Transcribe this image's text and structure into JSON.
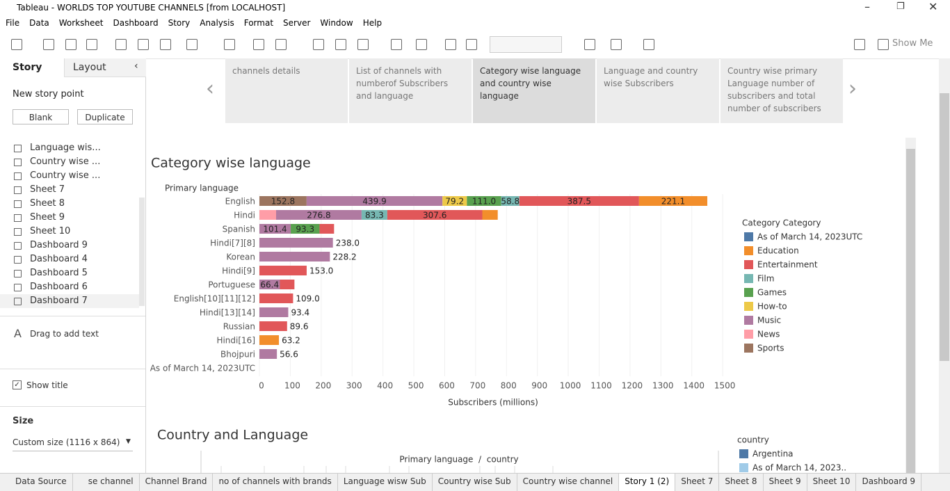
{
  "window": {
    "title": "Tableau - WORLDS TOP YOUTUBE CHANNELS [from LOCALHOST]"
  },
  "menu": [
    "File",
    "Data",
    "Worksheet",
    "Dashboard",
    "Story",
    "Analysis",
    "Format",
    "Server",
    "Window",
    "Help"
  ],
  "toolbar": {
    "show_me": "Show Me"
  },
  "side_panel": {
    "tabs": [
      "Story",
      "Layout"
    ],
    "new_story_point": "New story point",
    "buttons": [
      "Blank",
      "Duplicate"
    ],
    "sheets": [
      "Language wis...",
      "Country wise ...",
      "Country wise ...",
      "Sheet 7",
      "Sheet 8",
      "Sheet 9",
      "Sheet 10",
      "Dashboard 9",
      "Dashboard 4",
      "Dashboard 5",
      "Dashboard 6",
      "Dashboard 7"
    ],
    "drag_text": "Drag to add text",
    "show_title": "Show title",
    "size_label": "Size",
    "size_value": "Custom size (1116 x 864)"
  },
  "story_points": [
    "channels details",
    "List of channels with numberof Subscribers and language",
    "Category wise language and country wise language",
    "Language and country wise Subscribers",
    "Country wise primary Language number of subscribers and total number of subscribers"
  ],
  "chart_data": {
    "type": "bar",
    "orientation": "horizontal",
    "stacked": true,
    "title": "Category wise language",
    "y_axis_label": "Primary language",
    "x_axis_label": "Subscribers (millions)",
    "categories": [
      "English",
      "Hindi",
      "Spanish",
      "Hindi[7][8]",
      "Korean",
      "Hindi[9]",
      "Portuguese",
      "English[10][11][12]",
      "Hindi[13][14]",
      "Russian",
      "Hindi[16]",
      "Bhojpuri",
      "As of March 14, 2023UTC"
    ],
    "legend_title": "Category Category",
    "series": [
      {
        "name": "As of March 14, 2023UTC",
        "color": "#4e79a7",
        "values": [
          null,
          null,
          null,
          null,
          null,
          null,
          null,
          null,
          null,
          null,
          null,
          null,
          null
        ]
      },
      {
        "name": "Education",
        "color": "#f28e2b",
        "values": [
          221.1,
          50,
          null,
          null,
          null,
          null,
          null,
          null,
          null,
          null,
          63.2,
          null,
          null
        ],
        "value_labels": [
          "221.1",
          null,
          null,
          null,
          null,
          null,
          null,
          null,
          null,
          null,
          "63.2",
          null,
          null
        ]
      },
      {
        "name": "Entertainment",
        "color": "#e15759",
        "values": [
          387.5,
          307.6,
          47,
          null,
          null,
          153.0,
          47,
          109.0,
          null,
          89.6,
          null,
          null,
          null
        ],
        "value_labels": [
          "387.5",
          "307.6",
          null,
          null,
          null,
          "153.0",
          null,
          "109.0",
          null,
          "89.6",
          null,
          null,
          null
        ]
      },
      {
        "name": "Film",
        "color": "#76b7b2",
        "values": [
          58.8,
          83.3,
          null,
          null,
          null,
          null,
          null,
          null,
          null,
          null,
          null,
          null,
          null
        ],
        "value_labels": [
          "58.8",
          "83.3",
          null,
          null,
          null,
          null,
          null,
          null,
          null,
          null,
          null,
          null,
          null
        ]
      },
      {
        "name": "Games",
        "color": "#59a14f",
        "values": [
          111.0,
          null,
          93.3,
          null,
          null,
          null,
          null,
          null,
          null,
          null,
          null,
          null,
          null
        ],
        "value_labels": [
          "111.0",
          null,
          "93.3",
          null,
          null,
          null,
          null,
          null,
          null,
          null,
          null,
          null,
          null
        ]
      },
      {
        "name": "How-to",
        "color": "#edc948",
        "values": [
          79.2,
          null,
          null,
          null,
          null,
          null,
          null,
          null,
          null,
          null,
          null,
          null,
          null
        ],
        "value_labels": [
          "79.2",
          null,
          null,
          null,
          null,
          null,
          null,
          null,
          null,
          null,
          null,
          null,
          null
        ]
      },
      {
        "name": "Music",
        "color": "#b07aa1",
        "values": [
          439.9,
          276.8,
          101.4,
          238.0,
          228.2,
          null,
          66.4,
          null,
          93.4,
          null,
          null,
          56.6,
          null
        ],
        "value_labels": [
          "439.9",
          "276.8",
          "101.4",
          "238.0",
          "228.2",
          null,
          "66.4",
          null,
          "93.4",
          null,
          null,
          "56.6",
          null
        ]
      },
      {
        "name": "News",
        "color": "#ff9da7",
        "values": [
          null,
          54,
          null,
          null,
          null,
          null,
          null,
          null,
          null,
          null,
          null,
          null,
          null
        ]
      },
      {
        "name": "Sports",
        "color": "#9c755f",
        "values": [
          152.8,
          null,
          null,
          null,
          null,
          null,
          null,
          null,
          null,
          null,
          null,
          null,
          null
        ],
        "value_labels": [
          "152.8",
          null,
          null,
          null,
          null,
          null,
          null,
          null,
          null,
          null,
          null,
          null,
          null
        ]
      }
    ],
    "xlim": [
      0,
      1520
    ],
    "xticks": [
      0,
      100,
      200,
      300,
      400,
      500,
      600,
      700,
      800,
      900,
      1000,
      1100,
      1200,
      1300,
      1400,
      1500
    ],
    "grid": true
  },
  "second_sheet": {
    "title": "Country and Language",
    "header": "Primary language  /  country",
    "legend_title": "country",
    "legend": [
      "Argentina",
      "As of March 14, 2023.."
    ]
  },
  "tabs": [
    "Data Source",
    "se channel",
    "Channel Brand",
    "no of channels with brands",
    "Language wisw Sub",
    "Country wise Sub",
    "Country wise channel",
    "Story 1 (2)",
    "Sheet 7",
    "Sheet 8",
    "Sheet 9",
    "Sheet 10",
    "Dashboard 9"
  ]
}
